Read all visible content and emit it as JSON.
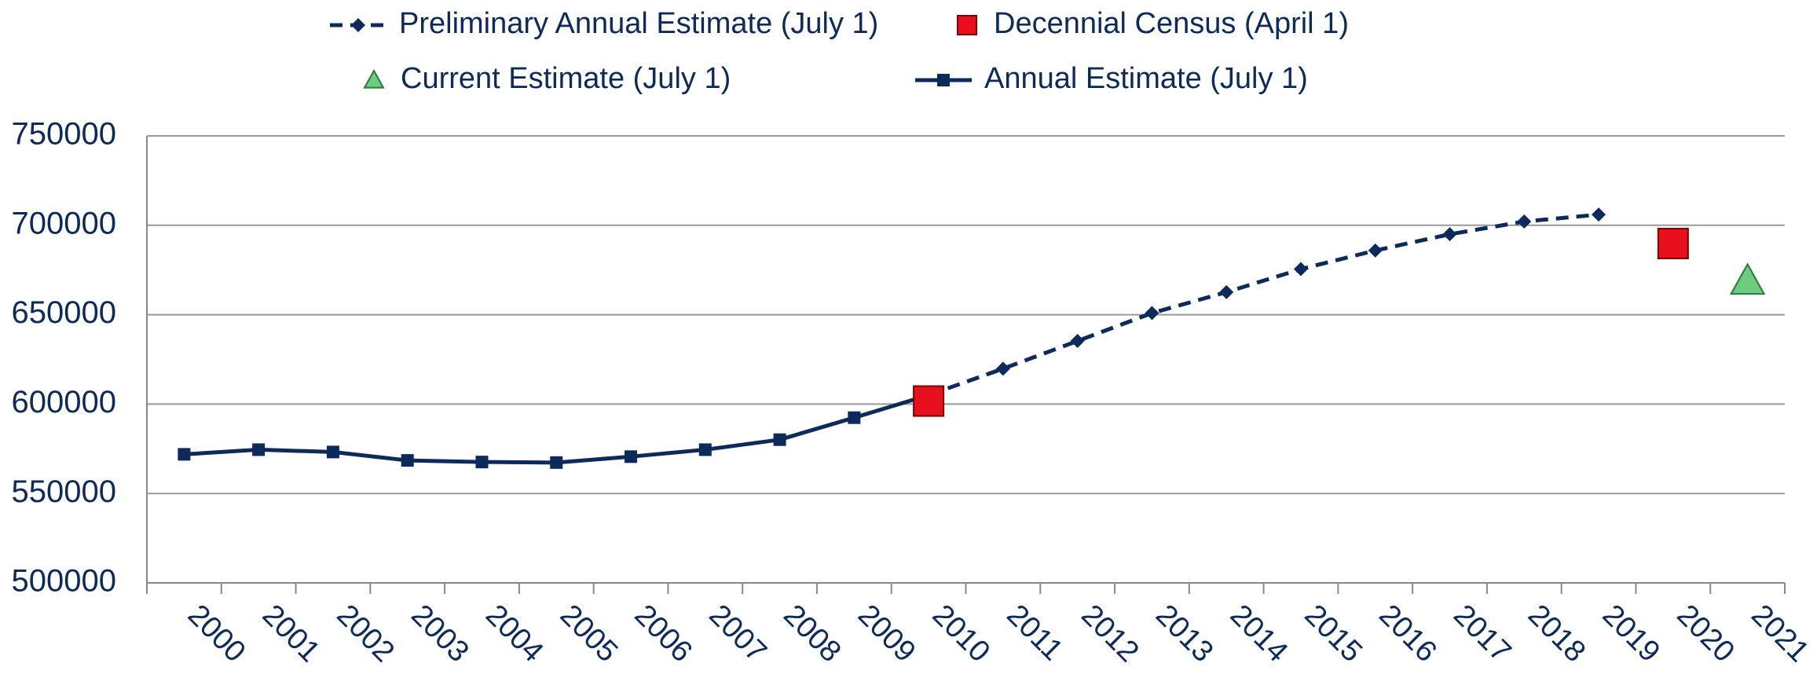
{
  "chart_data": {
    "type": "line",
    "categories": [
      "2000",
      "2001",
      "2002",
      "2003",
      "2004",
      "2005",
      "2006",
      "2007",
      "2008",
      "2009",
      "2010",
      "2011",
      "2012",
      "2013",
      "2014",
      "2015",
      "2016",
      "2017",
      "2018",
      "2019",
      "2020",
      "2021"
    ],
    "series": [
      {
        "name": "Preliminary Annual Estimate (July 1)",
        "color": "#0d2a5c",
        "marker": "diamond",
        "line": "dashed",
        "values": [
          null,
          null,
          null,
          null,
          null,
          null,
          null,
          null,
          null,
          null,
          605000,
          619800,
          635300,
          650900,
          662600,
          675500,
          685900,
          695000,
          702100,
          706000,
          null,
          null
        ]
      },
      {
        "name": "Decennial Census (April 1)",
        "color": "#e8101c",
        "marker": "square",
        "line": "none",
        "values": [
          null,
          null,
          null,
          null,
          null,
          null,
          null,
          null,
          null,
          null,
          601700,
          null,
          null,
          null,
          null,
          null,
          null,
          null,
          null,
          null,
          689800,
          null
        ]
      },
      {
        "name": "Current Estimate (July 1)",
        "color": "#6ccc7f",
        "marker": "triangle",
        "line": "none",
        "values": [
          null,
          null,
          null,
          null,
          null,
          null,
          null,
          null,
          null,
          null,
          null,
          null,
          null,
          null,
          null,
          null,
          null,
          null,
          null,
          null,
          null,
          669000
        ]
      },
      {
        "name": "Annual Estimate (July 1)",
        "color": "#0d2a5c",
        "marker": "small-square",
        "line": "solid",
        "values": [
          571900,
          574500,
          573200,
          568500,
          567600,
          567300,
          570600,
          574500,
          580100,
          592400,
          605000,
          null,
          null,
          null,
          null,
          null,
          null,
          null,
          null,
          null,
          null,
          null
        ]
      }
    ],
    "ylim": [
      500000,
      750000
    ],
    "yticks": [
      500000,
      550000,
      600000,
      650000,
      700000,
      750000
    ],
    "grid": true,
    "legend": "top"
  }
}
